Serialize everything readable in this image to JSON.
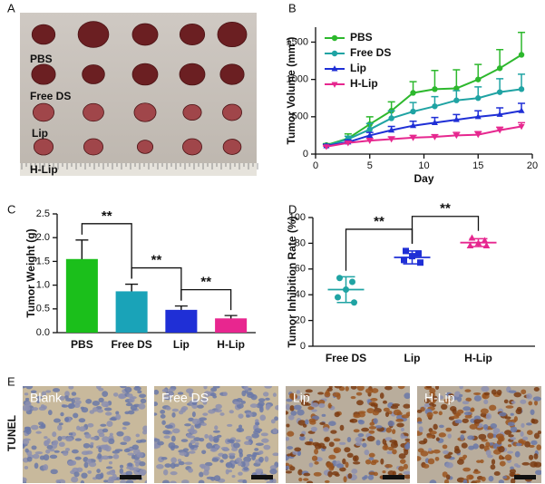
{
  "panel_labels": [
    "A",
    "B",
    "C",
    "D",
    "E"
  ],
  "photo_labels": [
    "PBS",
    "Free DS",
    "Lip",
    "H-Lip"
  ],
  "micrograph": {
    "stain": "TUNEL",
    "labels": [
      "Blank",
      "Free DS",
      "Lip",
      "H-Lip"
    ]
  },
  "chart_data": [
    {
      "type": "line",
      "x_label": "Day",
      "y_label": "Tumor Volume (mm³)",
      "x": [
        1,
        3,
        5,
        7,
        9,
        11,
        13,
        15,
        17,
        19
      ],
      "xlim": [
        0,
        20
      ],
      "xticks": [
        0,
        5,
        10,
        15,
        20
      ],
      "ylim": [
        0,
        1700
      ],
      "yticks": [
        0,
        500,
        1000,
        1500
      ],
      "legend": "upper-left",
      "series": [
        {
          "name": "PBS",
          "color": "#2db82d",
          "marker": "circle",
          "values": [
            120,
            210,
            400,
            580,
            820,
            870,
            880,
            1000,
            1150,
            1330
          ],
          "errors": [
            20,
            60,
            100,
            120,
            150,
            250,
            250,
            200,
            250,
            300
          ]
        },
        {
          "name": "Free DS",
          "color": "#1fa3a3",
          "marker": "circle",
          "values": [
            110,
            200,
            330,
            480,
            570,
            640,
            720,
            750,
            830,
            870
          ],
          "errors": [
            20,
            40,
            80,
            100,
            120,
            130,
            130,
            150,
            180,
            200
          ]
        },
        {
          "name": "Lip",
          "color": "#1f2fd6",
          "marker": "triangle-up",
          "values": [
            110,
            160,
            250,
            320,
            380,
            420,
            460,
            500,
            530,
            580
          ],
          "errors": [
            20,
            30,
            40,
            50,
            60,
            70,
            70,
            80,
            90,
            100
          ]
        },
        {
          "name": "H-Lip",
          "color": "#e6278f",
          "marker": "triangle-down",
          "values": [
            100,
            150,
            180,
            200,
            220,
            230,
            250,
            260,
            320,
            370
          ],
          "errors": [
            10,
            20,
            30,
            30,
            30,
            30,
            40,
            40,
            40,
            50
          ]
        }
      ]
    },
    {
      "type": "bar",
      "y_label": "Tumor Weight (g)",
      "categories": [
        "PBS",
        "Free DS",
        "Lip",
        "H-Lip"
      ],
      "values": [
        1.55,
        0.87,
        0.48,
        0.3
      ],
      "errors": [
        0.4,
        0.15,
        0.08,
        0.06
      ],
      "colors": [
        "#1bbf1b",
        "#1aa3b8",
        "#1f2fd6",
        "#e8268f"
      ],
      "ylim": [
        0,
        2.5
      ],
      "yticks": [
        {
          "value": 0,
          "label": "0.0"
        },
        {
          "value": 0.5,
          "label": "0.5"
        },
        {
          "value": 1,
          "label": "1.0"
        },
        {
          "value": 1.5,
          "label": "1.5"
        },
        {
          "value": 2,
          "label": "2.0"
        },
        {
          "value": 2.5,
          "label": "2.5"
        }
      ],
      "annotations": [
        "**",
        "**",
        "**"
      ]
    },
    {
      "type": "dot",
      "y_label": "Tumor Inhibition Rate (%)",
      "categories": [
        "Free DS",
        "Lip",
        "H-Lip"
      ],
      "points": [
        [
          53,
          50,
          44,
          38,
          34
        ],
        [
          74,
          72,
          70,
          67,
          65
        ],
        [
          84,
          82,
          80,
          78,
          78
        ]
      ],
      "means": [
        44,
        69,
        80.5
      ],
      "sds": [
        10,
        5,
        3
      ],
      "colors": [
        "#1fa3a3",
        "#1f2fd6",
        "#e6278f"
      ],
      "markers": [
        "circle",
        "square",
        "triangle-up"
      ],
      "ylim": [
        0,
        100
      ],
      "yticks": [
        0,
        20,
        40,
        60,
        80,
        100
      ],
      "annotations": [
        "**",
        "**"
      ]
    }
  ]
}
